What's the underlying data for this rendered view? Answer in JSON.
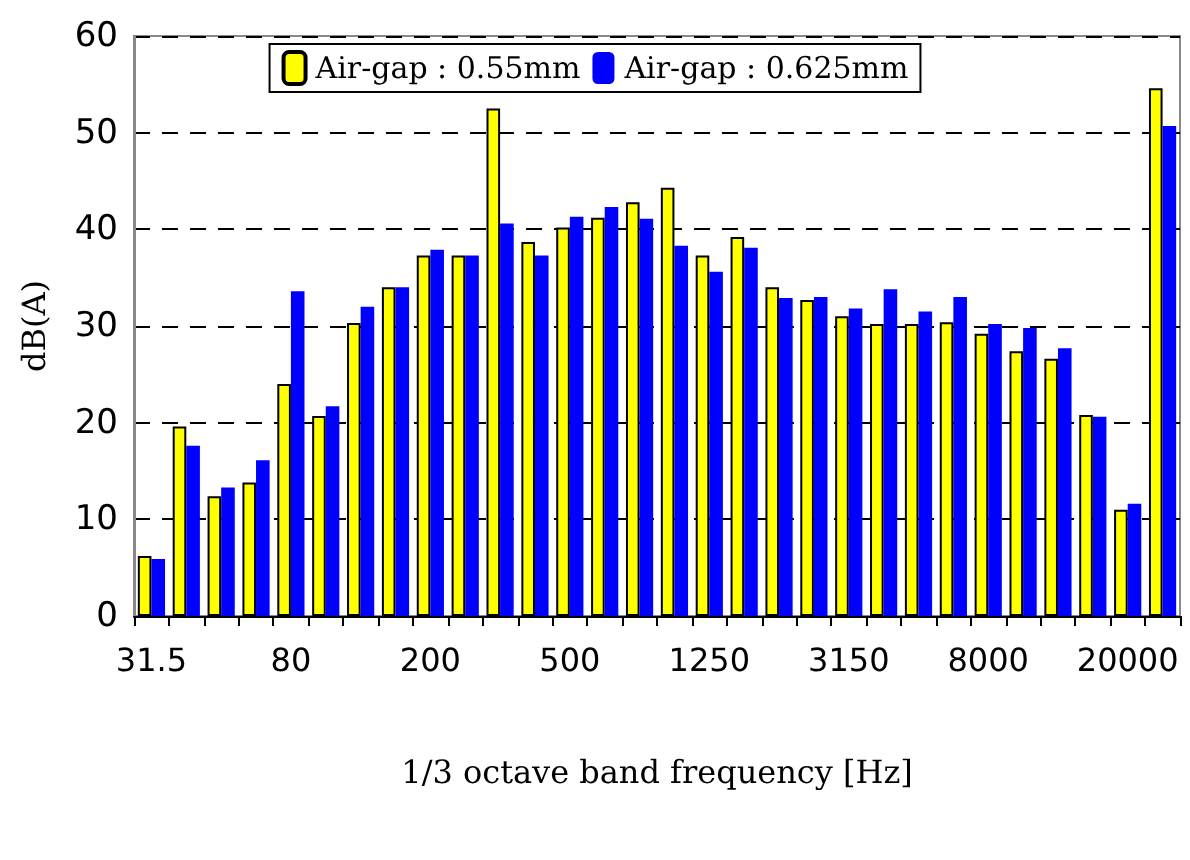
{
  "chart_data": {
    "type": "bar",
    "xlabel": "1/3 octave band frequency [Hz]",
    "ylabel": "dB(A)",
    "categories": [
      "31.5",
      null,
      null,
      null,
      "80",
      null,
      null,
      null,
      "200",
      null,
      null,
      null,
      "500",
      null,
      null,
      null,
      "1250",
      null,
      null,
      null,
      "3150",
      null,
      null,
      null,
      "8000",
      null,
      null,
      null,
      "20000",
      null
    ],
    "series": [
      {
        "name": "Air-gap : 0.55mm",
        "color": "#ffff00",
        "values": [
          6.2,
          19.6,
          12.4,
          13.8,
          24,
          20.7,
          30.3,
          34,
          37.3,
          37.3,
          52.5,
          38.7,
          40.2,
          41.2,
          42.8,
          44.3,
          37.3,
          39.2,
          34,
          32.7,
          31,
          30.2,
          30.2,
          30.4,
          29.2,
          27.4,
          26.6,
          20.8,
          11,
          54.6
        ]
      },
      {
        "name": "Air-gap : 0.625mm",
        "color": "#0000ff",
        "values": [
          5.9,
          17.6,
          13.3,
          16.1,
          33.6,
          21.7,
          32,
          34,
          37.9,
          37.3,
          40.6,
          37.3,
          41.3,
          42.3,
          41.1,
          38.3,
          35.6,
          38.1,
          32.9,
          33,
          31.8,
          33.8,
          31.5,
          33,
          30.2,
          29.8,
          27.7,
          20.6,
          11.6,
          50.7
        ]
      }
    ],
    "ylim": [
      0,
      60
    ],
    "yticks": [
      0,
      10,
      20,
      30,
      40,
      50,
      60
    ],
    "grid": "y",
    "legend": "top"
  }
}
